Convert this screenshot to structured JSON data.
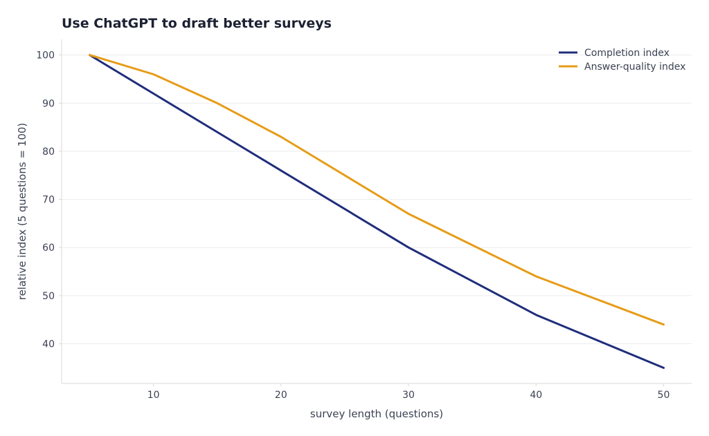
{
  "chart_data": {
    "type": "line",
    "title": "Use ChatGPT to draft better surveys",
    "xlabel": "survey length (questions)",
    "ylabel": "relative index (5 questions = 100)",
    "x": [
      5,
      10,
      15,
      20,
      30,
      40,
      50
    ],
    "series": [
      {
        "name": "Completion index",
        "values": [
          100,
          92,
          84,
          76,
          60,
          46,
          35
        ],
        "color": "#1f2d7b"
      },
      {
        "name": "Answer-quality index",
        "values": [
          100,
          96,
          90,
          83,
          67,
          54,
          44
        ],
        "color": "#e69c17"
      }
    ],
    "xlim": [
      2.8,
      52.2
    ],
    "ylim": [
      31.75,
      103.25
    ],
    "xticks": [
      10,
      20,
      30,
      40,
      50
    ],
    "yticks": [
      40,
      50,
      60,
      70,
      80,
      90,
      100
    ],
    "grid": "horizontal",
    "legend_position": "top-right",
    "colors": {
      "title": "#1b2132",
      "text": "#3b4252",
      "grid": "#ececec",
      "axis": "#d9d9d9"
    }
  }
}
